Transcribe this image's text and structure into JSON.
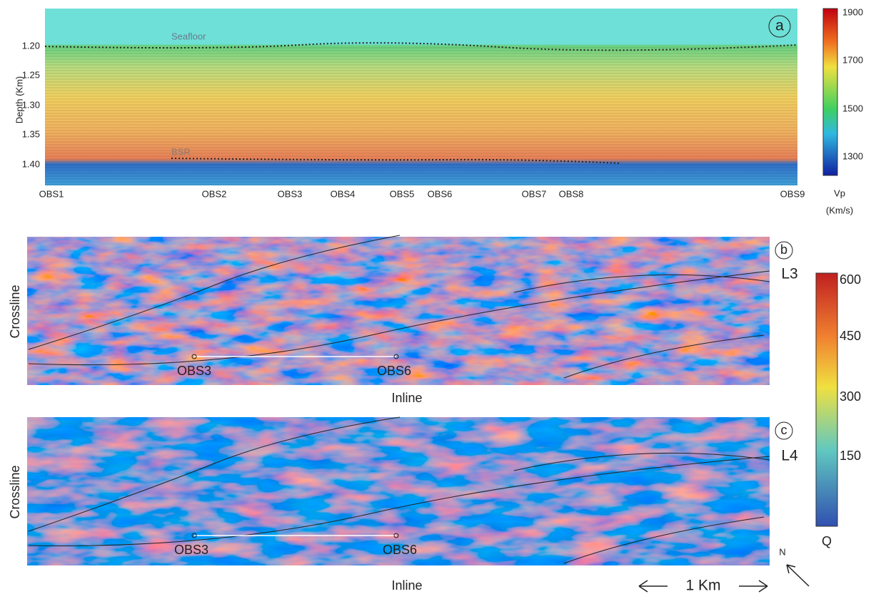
{
  "panel_a": {
    "label": "a",
    "y_axis_label": "Depth (Km)",
    "yticks": [
      "1.20",
      "1.25",
      "1.30",
      "1.35",
      "1.40"
    ],
    "horizons": [
      "Seafloor",
      "BSR"
    ],
    "obs": [
      "OBS1",
      "OBS2",
      "OBS3",
      "OBS4",
      "OBS5",
      "OBS6",
      "OBS7",
      "OBS8",
      "OBS9"
    ],
    "colorbar": {
      "title": "Vp",
      "unit": "(Km/s)",
      "ticks": [
        "1900",
        "1700",
        "1500",
        "1300"
      ]
    }
  },
  "panel_b": {
    "label": "b",
    "line": "L3",
    "y_axis_label": "Crossline",
    "x_axis_label": "Inline",
    "obs": [
      "OBS3",
      "OBS6"
    ]
  },
  "panel_c": {
    "label": "c",
    "line": "L4",
    "y_axis_label": "Crossline",
    "x_axis_label": "Inline",
    "obs": [
      "OBS3",
      "OBS6"
    ]
  },
  "q_colorbar": {
    "title": "Q",
    "ticks": [
      "600",
      "450",
      "300",
      "150"
    ]
  },
  "scale_bar": "1 Km",
  "north": "N"
}
